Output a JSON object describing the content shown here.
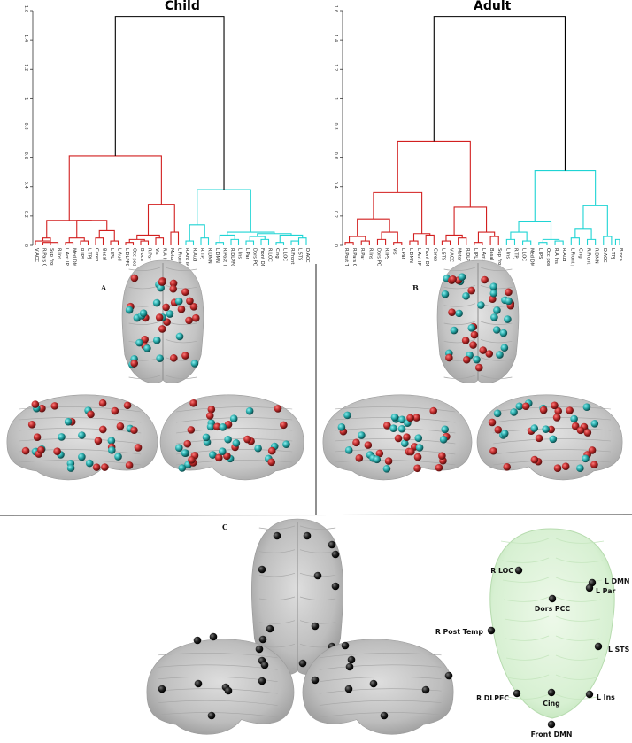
{
  "panels": {
    "a": {
      "letter": "A",
      "title": "Child",
      "y_ticks": [
        "0",
        "0.2",
        "0.4",
        "0.6",
        "0.8",
        "1",
        "1.2",
        "1.4",
        "1.6"
      ],
      "leaves": [
        "V ACC",
        "R Pars Op",
        "Sup Front S",
        "R Ins",
        "L Ant IPS",
        "Med DMN",
        "R IPS",
        "L TPJ",
        "Cereb",
        "Basal",
        "L IPL",
        "L Aud",
        "L DLPFC",
        "Occ post",
        "Broca",
        "R Par",
        "Vis",
        "R A Ins",
        "Motor",
        "L Front pol",
        "R Ant IPS",
        "R Aud",
        "R TPJ",
        "R DMN",
        "L DMN",
        "R Post Temp",
        "R DLPFC",
        "L Ins",
        "L Par",
        "Dors PCC",
        "Front DMN",
        "R LOC",
        "Cing",
        "L LOC",
        "R Front pol",
        "L STS",
        "D ACC"
      ],
      "colors": {
        "red": "#d21f1f",
        "cyan": "#1fd4d4",
        "black": "#000000"
      }
    },
    "b": {
      "letter": "B",
      "title": "Adult",
      "y_ticks": [
        "0",
        "0.2",
        "0.4",
        "0.6",
        "0.8",
        "1",
        "1.2",
        "1.4",
        "1.6"
      ],
      "leaves": [
        "R Post Temp",
        "R Pars Op",
        "R Par",
        "R Ins",
        "Dors PCC",
        "R IPS",
        "Vis",
        "L Par",
        "L DMN",
        "L Ant IPS",
        "Front DMN",
        "Cereb",
        "L STS",
        "V ACC",
        "Motor",
        "R DLPFC",
        "L IPL",
        "L Ant IPS",
        "Basal",
        "Sup Front S",
        "L Ins",
        "R TPJ",
        "L LOC",
        "Med DMN",
        "L IPS",
        "Occ post",
        "R A Ins",
        "R Aud",
        "L Front pol",
        "Cing",
        "R Front pol",
        "R DMN",
        "D ACC",
        "L TPJ",
        "Broca"
      ],
      "colors": {
        "red": "#d21f1f",
        "cyan": "#1fd4d4",
        "black": "#000000"
      }
    },
    "c": {
      "letter": "C",
      "node_labels": [
        "R LOC",
        "L DMN",
        "L Par",
        "Dors PCC",
        "R Post Temp",
        "L STS",
        "R DLPFC",
        "Cing",
        "L Ins",
        "Front DMN"
      ],
      "node_color": "#0d0d0d",
      "brain_green": "#d7f0d2"
    }
  },
  "brain_colors": {
    "red": "#b72828",
    "cyan": "#25a5a5",
    "gray": "#bfbfbf"
  }
}
